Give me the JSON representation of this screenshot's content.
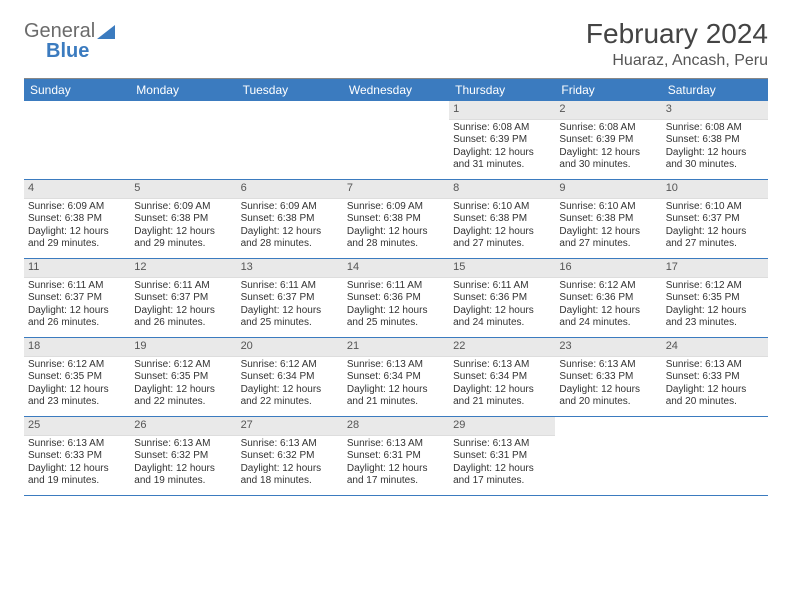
{
  "logo": {
    "part1": "General",
    "part2": "Blue"
  },
  "title": "February 2024",
  "subtitle": "Huaraz, Ancash, Peru",
  "colors": {
    "header_bg": "#3b7bbf",
    "daynum_bg": "#e9e9e9",
    "border": "#3b7bbf"
  },
  "weekdays": [
    "Sunday",
    "Monday",
    "Tuesday",
    "Wednesday",
    "Thursday",
    "Friday",
    "Saturday"
  ],
  "weeks": [
    [
      {
        "day": "",
        "lines": []
      },
      {
        "day": "",
        "lines": []
      },
      {
        "day": "",
        "lines": []
      },
      {
        "day": "",
        "lines": []
      },
      {
        "day": "1",
        "lines": [
          "Sunrise: 6:08 AM",
          "Sunset: 6:39 PM",
          "Daylight: 12 hours and 31 minutes."
        ]
      },
      {
        "day": "2",
        "lines": [
          "Sunrise: 6:08 AM",
          "Sunset: 6:39 PM",
          "Daylight: 12 hours and 30 minutes."
        ]
      },
      {
        "day": "3",
        "lines": [
          "Sunrise: 6:08 AM",
          "Sunset: 6:38 PM",
          "Daylight: 12 hours and 30 minutes."
        ]
      }
    ],
    [
      {
        "day": "4",
        "lines": [
          "Sunrise: 6:09 AM",
          "Sunset: 6:38 PM",
          "Daylight: 12 hours and 29 minutes."
        ]
      },
      {
        "day": "5",
        "lines": [
          "Sunrise: 6:09 AM",
          "Sunset: 6:38 PM",
          "Daylight: 12 hours and 29 minutes."
        ]
      },
      {
        "day": "6",
        "lines": [
          "Sunrise: 6:09 AM",
          "Sunset: 6:38 PM",
          "Daylight: 12 hours and 28 minutes."
        ]
      },
      {
        "day": "7",
        "lines": [
          "Sunrise: 6:09 AM",
          "Sunset: 6:38 PM",
          "Daylight: 12 hours and 28 minutes."
        ]
      },
      {
        "day": "8",
        "lines": [
          "Sunrise: 6:10 AM",
          "Sunset: 6:38 PM",
          "Daylight: 12 hours and 27 minutes."
        ]
      },
      {
        "day": "9",
        "lines": [
          "Sunrise: 6:10 AM",
          "Sunset: 6:38 PM",
          "Daylight: 12 hours and 27 minutes."
        ]
      },
      {
        "day": "10",
        "lines": [
          "Sunrise: 6:10 AM",
          "Sunset: 6:37 PM",
          "Daylight: 12 hours and 27 minutes."
        ]
      }
    ],
    [
      {
        "day": "11",
        "lines": [
          "Sunrise: 6:11 AM",
          "Sunset: 6:37 PM",
          "Daylight: 12 hours and 26 minutes."
        ]
      },
      {
        "day": "12",
        "lines": [
          "Sunrise: 6:11 AM",
          "Sunset: 6:37 PM",
          "Daylight: 12 hours and 26 minutes."
        ]
      },
      {
        "day": "13",
        "lines": [
          "Sunrise: 6:11 AM",
          "Sunset: 6:37 PM",
          "Daylight: 12 hours and 25 minutes."
        ]
      },
      {
        "day": "14",
        "lines": [
          "Sunrise: 6:11 AM",
          "Sunset: 6:36 PM",
          "Daylight: 12 hours and 25 minutes."
        ]
      },
      {
        "day": "15",
        "lines": [
          "Sunrise: 6:11 AM",
          "Sunset: 6:36 PM",
          "Daylight: 12 hours and 24 minutes."
        ]
      },
      {
        "day": "16",
        "lines": [
          "Sunrise: 6:12 AM",
          "Sunset: 6:36 PM",
          "Daylight: 12 hours and 24 minutes."
        ]
      },
      {
        "day": "17",
        "lines": [
          "Sunrise: 6:12 AM",
          "Sunset: 6:35 PM",
          "Daylight: 12 hours and 23 minutes."
        ]
      }
    ],
    [
      {
        "day": "18",
        "lines": [
          "Sunrise: 6:12 AM",
          "Sunset: 6:35 PM",
          "Daylight: 12 hours and 23 minutes."
        ]
      },
      {
        "day": "19",
        "lines": [
          "Sunrise: 6:12 AM",
          "Sunset: 6:35 PM",
          "Daylight: 12 hours and 22 minutes."
        ]
      },
      {
        "day": "20",
        "lines": [
          "Sunrise: 6:12 AM",
          "Sunset: 6:34 PM",
          "Daylight: 12 hours and 22 minutes."
        ]
      },
      {
        "day": "21",
        "lines": [
          "Sunrise: 6:13 AM",
          "Sunset: 6:34 PM",
          "Daylight: 12 hours and 21 minutes."
        ]
      },
      {
        "day": "22",
        "lines": [
          "Sunrise: 6:13 AM",
          "Sunset: 6:34 PM",
          "Daylight: 12 hours and 21 minutes."
        ]
      },
      {
        "day": "23",
        "lines": [
          "Sunrise: 6:13 AM",
          "Sunset: 6:33 PM",
          "Daylight: 12 hours and 20 minutes."
        ]
      },
      {
        "day": "24",
        "lines": [
          "Sunrise: 6:13 AM",
          "Sunset: 6:33 PM",
          "Daylight: 12 hours and 20 minutes."
        ]
      }
    ],
    [
      {
        "day": "25",
        "lines": [
          "Sunrise: 6:13 AM",
          "Sunset: 6:33 PM",
          "Daylight: 12 hours and 19 minutes."
        ]
      },
      {
        "day": "26",
        "lines": [
          "Sunrise: 6:13 AM",
          "Sunset: 6:32 PM",
          "Daylight: 12 hours and 19 minutes."
        ]
      },
      {
        "day": "27",
        "lines": [
          "Sunrise: 6:13 AM",
          "Sunset: 6:32 PM",
          "Daylight: 12 hours and 18 minutes."
        ]
      },
      {
        "day": "28",
        "lines": [
          "Sunrise: 6:13 AM",
          "Sunset: 6:31 PM",
          "Daylight: 12 hours and 17 minutes."
        ]
      },
      {
        "day": "29",
        "lines": [
          "Sunrise: 6:13 AM",
          "Sunset: 6:31 PM",
          "Daylight: 12 hours and 17 minutes."
        ]
      },
      {
        "day": "",
        "lines": []
      },
      {
        "day": "",
        "lines": []
      }
    ]
  ]
}
